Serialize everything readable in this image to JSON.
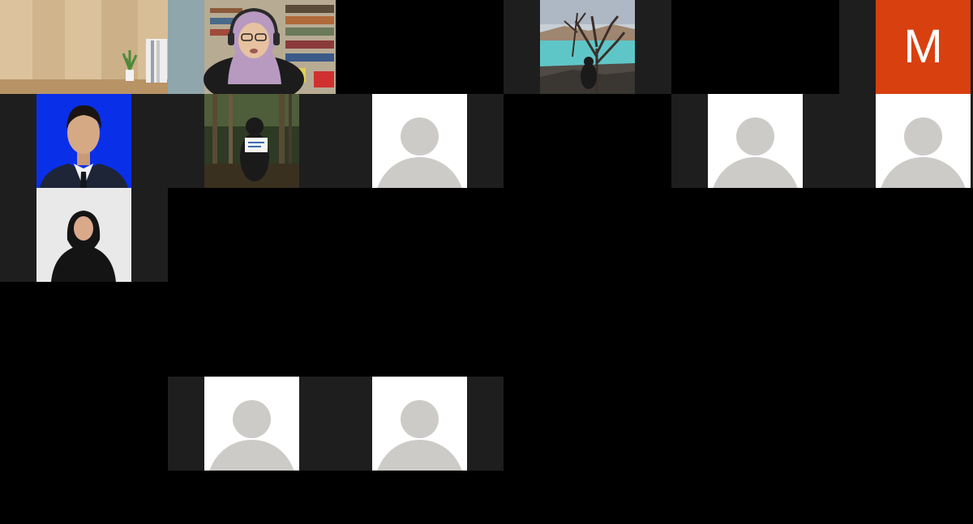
{
  "meeting": {
    "view": "gallery",
    "participants": [
      {
        "id": "p1",
        "kind": "video",
        "scene": "wood-panel-room"
      },
      {
        "id": "p2",
        "kind": "video",
        "scene": "woman-with-headset-bookshelf"
      },
      {
        "id": "p3",
        "kind": "empty"
      },
      {
        "id": "p4",
        "kind": "photo",
        "scene": "crater-lake-tree"
      },
      {
        "id": "p5",
        "kind": "empty"
      },
      {
        "id": "p6",
        "kind": "initial",
        "initial": "M",
        "color": "#d9400f"
      },
      {
        "id": "p7",
        "kind": "photo",
        "scene": "man-blue-background"
      },
      {
        "id": "p8",
        "kind": "photo",
        "scene": "forest-sign"
      },
      {
        "id": "p9",
        "kind": "avatar"
      },
      {
        "id": "p10",
        "kind": "empty"
      },
      {
        "id": "p11",
        "kind": "avatar"
      },
      {
        "id": "p12",
        "kind": "avatar"
      },
      {
        "id": "p13",
        "kind": "photo",
        "scene": "woman-white-background"
      },
      {
        "id": "p14",
        "kind": "avatar"
      },
      {
        "id": "p15",
        "kind": "avatar"
      }
    ]
  },
  "colors": {
    "background": "#000000",
    "tile": "#1e1e1e",
    "avatar_placeholder": "#cdcbc8",
    "initial_tile": "#d9400f"
  }
}
